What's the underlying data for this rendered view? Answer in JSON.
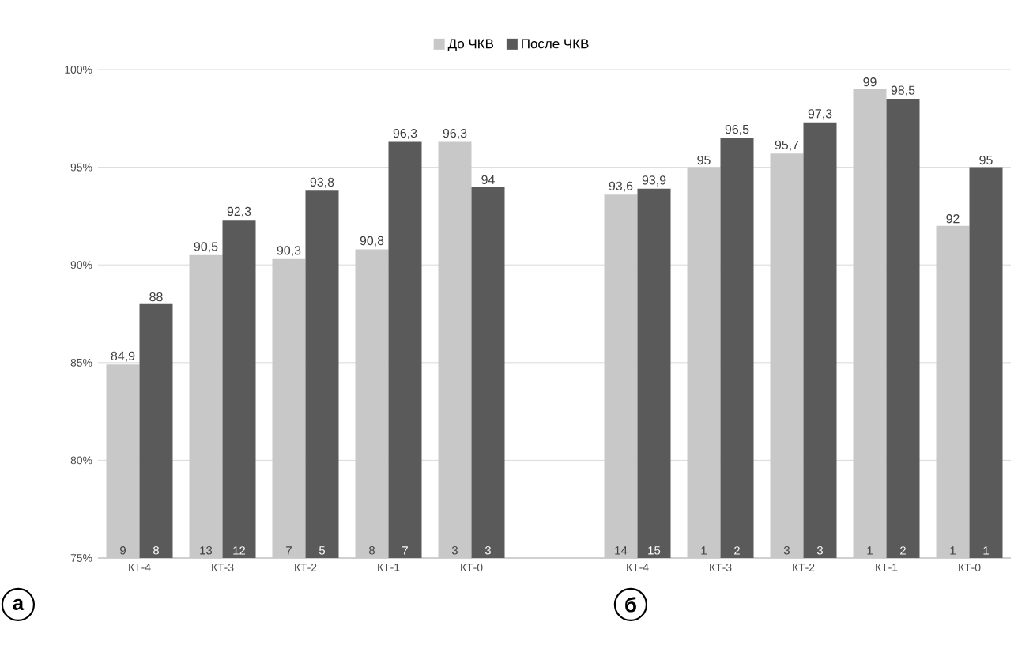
{
  "chart_data": [
    {
      "type": "bar",
      "categories": [
        "КТ-4",
        "КТ-3",
        "КТ-2",
        "КТ-1",
        "КТ-0"
      ],
      "series": [
        {
          "name": "До ЧКВ",
          "color": "#c8c8c8",
          "values": [
            84.9,
            90.5,
            90.3,
            90.8,
            96.3
          ],
          "value_labels": [
            "84,9",
            "90,5",
            "90,3",
            "90,8",
            "96,3"
          ]
        },
        {
          "name": "После ЧКВ",
          "color": "#5a5a5a",
          "values": [
            88,
            92.3,
            93.8,
            96.3,
            94
          ],
          "value_labels": [
            "88",
            "92,3",
            "93,8",
            "96,3",
            "94"
          ]
        }
      ],
      "ylim": [
        75,
        100
      ],
      "yticks": [
        {
          "value": 75,
          "label": "75%"
        },
        {
          "value": 80,
          "label": "80%"
        },
        {
          "value": 85,
          "label": "85%"
        },
        {
          "value": 90,
          "label": "90%"
        },
        {
          "value": 95,
          "label": "95%"
        },
        {
          "value": 100,
          "label": "100%"
        }
      ],
      "grid": "y",
      "legend": "top",
      "annotations": [
        "а",
        {
          "text": "9",
          "x": "КТ-4",
          "y": 75
        },
        {
          "text": "8",
          "x": "КТ-4",
          "y": 75
        },
        {
          "text": "13",
          "x": "КТ-3",
          "y": 75
        },
        {
          "text": "12",
          "x": "КТ-3",
          "y": 75
        },
        {
          "text": "7",
          "x": "КТ-2",
          "y": 75
        },
        {
          "text": "5",
          "x": "КТ-2",
          "y": 75
        },
        {
          "text": "8",
          "x": "КТ-1",
          "y": 75
        },
        {
          "text": "7",
          "x": "КТ-1",
          "y": 75
        },
        {
          "text": "3",
          "x": "КТ-0",
          "y": 75
        },
        {
          "text": "3",
          "x": "КТ-0",
          "y": 75
        }
      ]
    },
    {
      "type": "bar",
      "categories": [
        "КТ-4",
        "КТ-3",
        "КТ-2",
        "КТ-1",
        "КТ-0"
      ],
      "series": [
        {
          "color": "#c8c8c8",
          "values": [
            93.6,
            95,
            95.7,
            99,
            92
          ],
          "value_labels": [
            "93,6",
            "95",
            "95,7",
            "99",
            "92"
          ]
        },
        {
          "color": "#5a5a5a",
          "values": [
            93.9,
            96.5,
            97.3,
            98.5,
            95
          ],
          "value_labels": [
            "93,9",
            "96,5",
            "97,3",
            "98,5",
            "95"
          ]
        }
      ],
      "ylim": [
        75,
        100
      ],
      "yticks": [
        {
          "value": 75,
          "label": null
        },
        {
          "value": 80,
          "label": null
        },
        {
          "value": 85,
          "label": null
        },
        {
          "value": 90,
          "label": null
        },
        {
          "value": 95,
          "label": null
        },
        {
          "value": 100,
          "label": null
        }
      ],
      "grid": "y",
      "tick_labels": "x",
      "annotations": [
        "б",
        {
          "text": "14",
          "x": "КТ-4",
          "y": 75
        },
        {
          "text": "15",
          "x": "КТ-4",
          "y": 75
        },
        {
          "text": "1",
          "x": "КТ-3",
          "y": 75
        },
        {
          "text": "2",
          "x": "КТ-3",
          "y": 75
        },
        {
          "text": "3",
          "x": "КТ-2",
          "y": 75
        },
        {
          "text": "3",
          "x": "КТ-2",
          "y": 75
        },
        {
          "text": "1",
          "x": "КТ-1",
          "y": 75
        },
        {
          "text": "2",
          "x": "КТ-1",
          "y": 75
        },
        {
          "text": "1",
          "x": "КТ-0",
          "y": 75
        },
        {
          "text": "1",
          "x": "КТ-0",
          "y": 75
        }
      ]
    }
  ]
}
